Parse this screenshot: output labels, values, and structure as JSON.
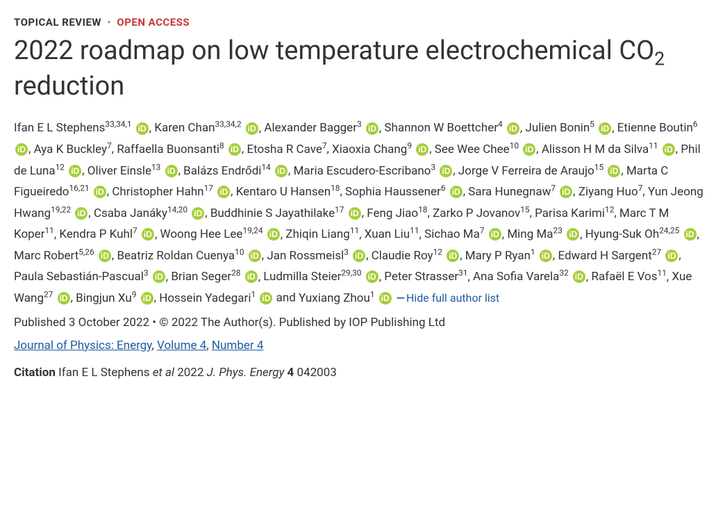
{
  "header": {
    "article_type": "TOPICAL REVIEW",
    "access": "OPEN ACCESS"
  },
  "title_parts": {
    "before_sub": "2022 roadmap on low temperature electrochemical CO",
    "sub": "2",
    "after_sub": " reduction"
  },
  "orcid_icon_bg": "#a6ce39",
  "authors": [
    {
      "name": "Ifan E L Stephens",
      "affil": "33,34,1",
      "orcid": true
    },
    {
      "name": "Karen Chan",
      "affil": "33,34,2",
      "orcid": true
    },
    {
      "name": "Alexander Bagger",
      "affil": "3",
      "orcid": true
    },
    {
      "name": "Shannon W Boettcher",
      "affil": "4",
      "orcid": true
    },
    {
      "name": "Julien Bonin",
      "affil": "5",
      "orcid": true
    },
    {
      "name": "Etienne Boutin",
      "affil": "6",
      "orcid": true
    },
    {
      "name": "Aya K Buckley",
      "affil": "7",
      "orcid": false
    },
    {
      "name": "Raffaella Buonsanti",
      "affil": "8",
      "orcid": true
    },
    {
      "name": "Etosha R Cave",
      "affil": "7",
      "orcid": false
    },
    {
      "name": "Xiaoxia Chang",
      "affil": "9",
      "orcid": true
    },
    {
      "name": "See Wee Chee",
      "affil": "10",
      "orcid": true
    },
    {
      "name": "Alisson H M da Silva",
      "affil": "11",
      "orcid": true
    },
    {
      "name": "Phil de Luna",
      "affil": "12",
      "orcid": true
    },
    {
      "name": "Oliver Einsle",
      "affil": "13",
      "orcid": true
    },
    {
      "name": "Balázs Endrődi",
      "affil": "14",
      "orcid": true
    },
    {
      "name": "Maria Escudero-Escribano",
      "affil": "3",
      "orcid": true
    },
    {
      "name": "Jorge V Ferreira de Araujo",
      "affil": "15",
      "orcid": true
    },
    {
      "name": "Marta C Figueiredo",
      "affil": "16,21",
      "orcid": true
    },
    {
      "name": "Christopher Hahn",
      "affil": "17",
      "orcid": true
    },
    {
      "name": "Kentaro U Hansen",
      "affil": "18",
      "orcid": false
    },
    {
      "name": "Sophia Haussener",
      "affil": "6",
      "orcid": true
    },
    {
      "name": "Sara Hunegnaw",
      "affil": "7",
      "orcid": true
    },
    {
      "name": "Ziyang Huo",
      "affil": "7",
      "orcid": false
    },
    {
      "name": "Yun Jeong Hwang",
      "affil": "19,22",
      "orcid": true
    },
    {
      "name": "Csaba Janáky",
      "affil": "14,20",
      "orcid": true
    },
    {
      "name": "Buddhinie S Jayathilake",
      "affil": "17",
      "orcid": true
    },
    {
      "name": "Feng Jiao",
      "affil": "18",
      "orcid": false
    },
    {
      "name": "Zarko P Jovanov",
      "affil": "15",
      "orcid": false
    },
    {
      "name": "Parisa Karimi",
      "affil": "12",
      "orcid": false
    },
    {
      "name": "Marc T M Koper",
      "affil": "11",
      "orcid": false
    },
    {
      "name": "Kendra P Kuhl",
      "affil": "7",
      "orcid": true
    },
    {
      "name": "Woong Hee Lee",
      "affil": "19,24",
      "orcid": true
    },
    {
      "name": "Zhiqin Liang",
      "affil": "11",
      "orcid": false
    },
    {
      "name": "Xuan Liu",
      "affil": "11",
      "orcid": false
    },
    {
      "name": "Sichao Ma",
      "affil": "7",
      "orcid": true
    },
    {
      "name": "Ming Ma",
      "affil": "23",
      "orcid": true
    },
    {
      "name": "Hyung-Suk Oh",
      "affil": "24,25",
      "orcid": true
    },
    {
      "name": "Marc Robert",
      "affil": "5,26",
      "orcid": true
    },
    {
      "name": "Beatriz Roldan Cuenya",
      "affil": "10",
      "orcid": true
    },
    {
      "name": "Jan Rossmeisl",
      "affil": "3",
      "orcid": true
    },
    {
      "name": "Claudie Roy",
      "affil": "12",
      "orcid": true
    },
    {
      "name": "Mary P Ryan",
      "affil": "1",
      "orcid": true
    },
    {
      "name": "Edward H Sargent",
      "affil": "27",
      "orcid": true
    },
    {
      "name": "Paula Sebastián-Pascual",
      "affil": "3",
      "orcid": true
    },
    {
      "name": "Brian Seger",
      "affil": "28",
      "orcid": true
    },
    {
      "name": "Ludmilla Steier",
      "affil": "29,30",
      "orcid": true
    },
    {
      "name": "Peter Strasser",
      "affil": "31",
      "orcid": false
    },
    {
      "name": "Ana Sofia Varela",
      "affil": "32",
      "orcid": true
    },
    {
      "name": "Rafaël E Vos",
      "affil": "11",
      "orcid": false
    },
    {
      "name": "Xue Wang",
      "affil": "27",
      "orcid": true
    },
    {
      "name": "Bingjun Xu",
      "affil": "9",
      "orcid": true
    },
    {
      "name": "Hossein Yadegari",
      "affil": "1",
      "orcid": true
    },
    {
      "name": "Yuxiang Zhou",
      "affil": "1",
      "orcid": true
    }
  ],
  "author_join_comma": ", ",
  "author_join_and": " and ",
  "hide_link_label": "Hide full author list",
  "published_line": "Published 3 October 2022 • © 2022 The Author(s). Published by IOP Publishing Ltd",
  "journal": {
    "name": "Journal of Physics: Energy",
    "volume": "Volume 4",
    "issue": "Number 4"
  },
  "citation": {
    "label": "Citation",
    "text_before": " Ifan E L Stephens ",
    "et_al": "et al",
    "text_mid": " 2022 ",
    "journal_abbrev": "J. Phys. Energy",
    "text_after": " ",
    "vol_bold": "4",
    "article": " 042003"
  }
}
